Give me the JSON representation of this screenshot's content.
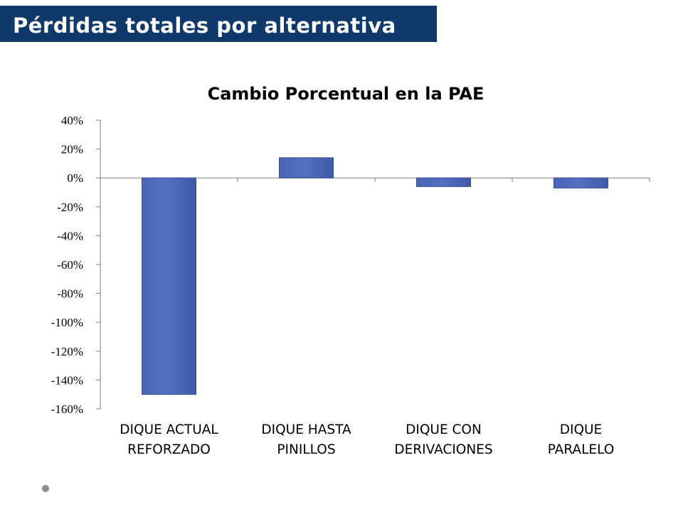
{
  "header": {
    "title": "Pérdidas totales por alternativa"
  },
  "colors": {
    "banner": "#10396b",
    "bar": "#5470c4",
    "bar_edge": "#34508f"
  },
  "chart_data": {
    "type": "bar",
    "title": "Cambio Porcentual en la PAE",
    "categories": [
      [
        "DIQUE ACTUAL",
        "REFORZADO"
      ],
      [
        "DIQUE HASTA",
        "PINILLOS"
      ],
      [
        "DIQUE CON",
        "DERIVACIONES"
      ],
      [
        "DIQUE",
        "PARALELO"
      ]
    ],
    "values": [
      -150,
      14,
      -6,
      -7
    ],
    "ylim": [
      -160,
      40
    ],
    "yticks": [
      40,
      20,
      0,
      -20,
      -40,
      -60,
      -80,
      -100,
      -120,
      -140,
      -160
    ],
    "ytick_labels": [
      "40%",
      "20%",
      "0%",
      "-20%",
      "-40%",
      "-60%",
      "-80%",
      "-100%",
      "-120%",
      "-140%",
      "-160%"
    ],
    "grid": false,
    "legend": "none"
  }
}
